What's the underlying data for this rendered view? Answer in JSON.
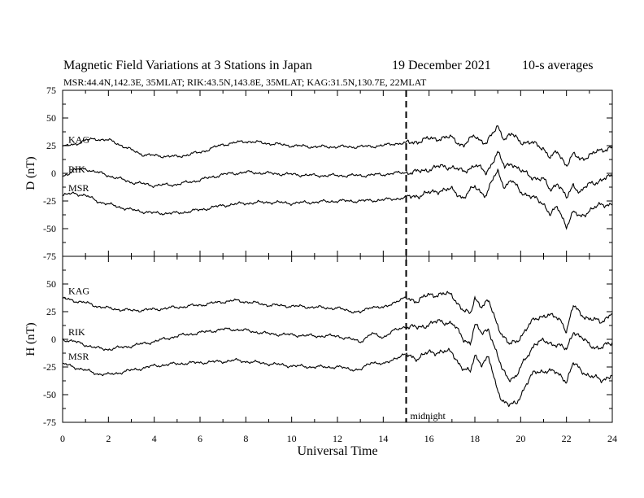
{
  "header": {
    "title": "Magnetic Field Variations at 3 Stations in Japan",
    "date": "19 December 2021",
    "averaging": "10-s averages",
    "stations": "MSR:44.4N,142.3E, 35MLAT;  RIK:43.5N,143.8E, 35MLAT;  KAG:31.5N,130.7E, 22MLAT"
  },
  "chart_data": [
    {
      "type": "line",
      "panel": "top",
      "ylabel": "D (nT)",
      "xlabel": "",
      "xlim": [
        0,
        24
      ],
      "ylim": [
        -75,
        75
      ],
      "yticks": [
        75,
        50,
        25,
        0,
        -25,
        -50,
        -75
      ],
      "xticks": [
        0,
        2,
        4,
        6,
        8,
        10,
        12,
        14,
        16,
        18,
        20,
        22,
        24
      ],
      "series": [
        {
          "name": "KAG",
          "x": [
            0,
            0.5,
            1,
            1.5,
            2,
            2.5,
            3,
            3.5,
            4,
            5,
            6,
            7,
            8,
            9,
            10,
            11,
            12,
            13,
            14,
            14.5,
            15,
            15.5,
            16,
            16.5,
            17,
            17.5,
            18,
            18.5,
            18.8,
            19,
            19.3,
            19.6,
            20,
            20.5,
            21,
            21.3,
            21.6,
            22,
            22.3,
            22.6,
            23,
            23.5,
            24
          ],
          "values": [
            24,
            26,
            30,
            31,
            30,
            26,
            21,
            17,
            16,
            15,
            19,
            26,
            29,
            27,
            25,
            24,
            24,
            24,
            25,
            27,
            27,
            29,
            31,
            32,
            32,
            25,
            34,
            27,
            36,
            43,
            31,
            35,
            29,
            27,
            23,
            14,
            19,
            8,
            17,
            12,
            17,
            20,
            25
          ]
        },
        {
          "name": "RIK",
          "x": [
            0,
            0.5,
            1,
            1.5,
            2,
            3,
            4,
            5,
            6,
            7,
            8,
            9,
            10,
            11,
            12,
            13,
            14,
            14.5,
            15,
            15.5,
            16,
            16.5,
            17,
            17.5,
            18,
            18.5,
            18.8,
            19,
            19.3,
            19.6,
            20,
            20.5,
            21,
            21.3,
            21.6,
            22,
            22.3,
            22.6,
            23,
            23.5,
            24
          ],
          "values": [
            -3,
            3,
            4,
            1,
            -2,
            -8,
            -11,
            -10,
            -6,
            -1,
            1,
            0,
            -1,
            -2,
            -2,
            -2,
            -1,
            0,
            1,
            1,
            4,
            6,
            6,
            1,
            8,
            0,
            12,
            19,
            5,
            10,
            2,
            -3,
            -6,
            -15,
            -8,
            -23,
            -10,
            -17,
            -10,
            -6,
            -3
          ]
        },
        {
          "name": "MSR",
          "x": [
            0,
            0.5,
            1,
            1.5,
            2,
            3,
            4,
            5,
            6,
            7,
            8,
            9,
            10,
            11,
            12,
            13,
            14,
            14.5,
            15,
            15.5,
            16,
            16.5,
            17,
            17.5,
            18,
            18.5,
            18.8,
            19,
            19.3,
            19.6,
            20,
            20.5,
            21,
            21.3,
            21.6,
            22,
            22.3,
            22.6,
            23,
            23.5,
            24
          ],
          "values": [
            -20,
            -18,
            -20,
            -25,
            -28,
            -33,
            -36,
            -36,
            -33,
            -29,
            -27,
            -26,
            -27,
            -26,
            -25,
            -25,
            -24,
            -23,
            -22,
            -20,
            -18,
            -15,
            -15,
            -22,
            -12,
            -20,
            -5,
            2,
            -12,
            -7,
            -16,
            -22,
            -27,
            -37,
            -31,
            -47,
            -35,
            -40,
            -33,
            -29,
            -27
          ]
        }
      ]
    },
    {
      "type": "line",
      "panel": "bottom",
      "ylabel": "H (nT)",
      "xlabel": "Universal Time",
      "xlim": [
        0,
        24
      ],
      "ylim": [
        -75,
        75
      ],
      "yticks": [
        50,
        25,
        0,
        -25,
        -50,
        -75
      ],
      "xticks": [
        0,
        2,
        4,
        6,
        8,
        10,
        12,
        14,
        16,
        18,
        20,
        22,
        24
      ],
      "annotation": {
        "x": 15,
        "label": "midnight",
        "style": "dashed"
      },
      "series": [
        {
          "name": "KAG",
          "x": [
            0,
            0.5,
            1,
            1.5,
            2,
            3,
            4,
            5,
            6,
            7,
            7.5,
            8,
            9,
            10,
            11,
            12,
            13,
            13.5,
            14,
            14.5,
            15,
            15.5,
            16,
            16.5,
            17,
            17.5,
            17.8,
            18,
            18.3,
            18.6,
            18.9,
            19.2,
            19.5,
            19.8,
            20.2,
            20.6,
            21,
            21.5,
            21.8,
            22,
            22.3,
            22.6,
            23,
            23.5,
            24
          ],
          "values": [
            37,
            35,
            33,
            30,
            28,
            26,
            27,
            29,
            31,
            34,
            35,
            34,
            31,
            30,
            29,
            28,
            24,
            30,
            28,
            34,
            37,
            35,
            40,
            41,
            40,
            26,
            22,
            38,
            30,
            34,
            18,
            4,
            -5,
            -2,
            8,
            18,
            22,
            20,
            17,
            7,
            30,
            24,
            18,
            16,
            24
          ]
        },
        {
          "name": "RIK",
          "x": [
            0,
            0.5,
            1,
            1.5,
            2,
            3,
            4,
            5,
            6,
            7,
            7.5,
            8,
            9,
            10,
            11,
            12,
            13,
            13.5,
            14,
            14.5,
            15,
            15.5,
            16,
            16.5,
            17,
            17.5,
            17.8,
            18,
            18.3,
            18.6,
            18.9,
            19.2,
            19.5,
            19.8,
            20.2,
            20.6,
            21,
            21.5,
            21.8,
            22,
            22.3,
            22.6,
            23,
            23.5,
            24
          ],
          "values": [
            0,
            -2,
            -5,
            -8,
            -9,
            -6,
            -2,
            3,
            6,
            9,
            9,
            8,
            5,
            4,
            3,
            3,
            -2,
            5,
            2,
            8,
            12,
            10,
            14,
            16,
            15,
            0,
            -3,
            13,
            5,
            10,
            -10,
            -28,
            -35,
            -34,
            -18,
            -4,
            -2,
            -4,
            -7,
            -10,
            8,
            2,
            -5,
            -8,
            -3
          ]
        },
        {
          "name": "MSR",
          "x": [
            0,
            0.5,
            1,
            1.5,
            2,
            3,
            4,
            5,
            6,
            7,
            7.5,
            8,
            9,
            10,
            11,
            12,
            13,
            13.5,
            14,
            14.5,
            15,
            15.5,
            16,
            16.5,
            17,
            17.5,
            17.8,
            18,
            18.3,
            18.6,
            18.9,
            19.2,
            19.5,
            19.8,
            20.2,
            20.6,
            21,
            21.5,
            21.8,
            22,
            22.3,
            22.6,
            23,
            23.5,
            24
          ],
          "values": [
            -22,
            -25,
            -28,
            -31,
            -32,
            -28,
            -24,
            -22,
            -21,
            -20,
            -19,
            -20,
            -22,
            -24,
            -25,
            -25,
            -28,
            -20,
            -23,
            -17,
            -14,
            -17,
            -12,
            -11,
            -12,
            -27,
            -30,
            -14,
            -22,
            -17,
            -40,
            -55,
            -60,
            -58,
            -42,
            -30,
            -28,
            -30,
            -33,
            -38,
            -22,
            -27,
            -33,
            -37,
            -32
          ]
        }
      ]
    }
  ]
}
